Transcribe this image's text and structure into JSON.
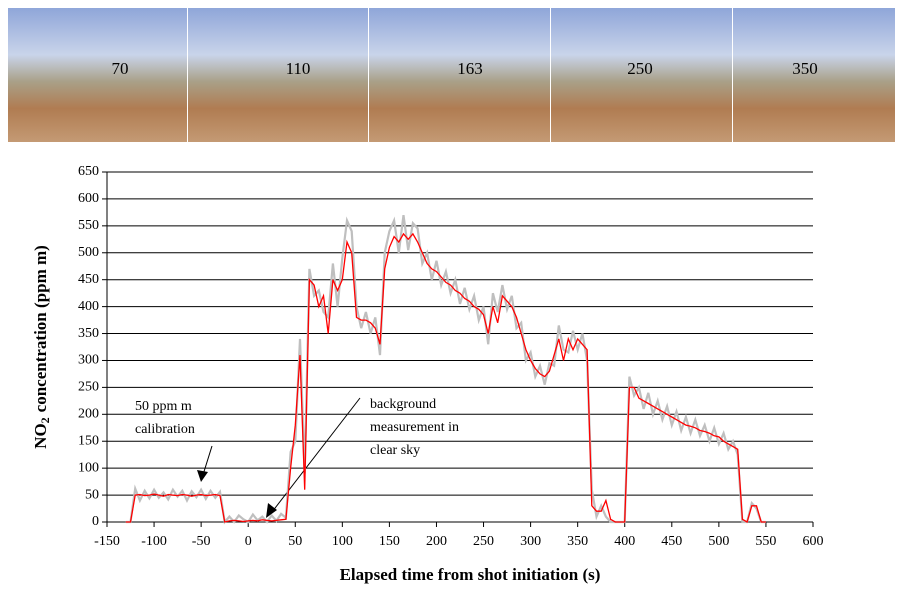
{
  "chart_data": {
    "type": "line",
    "photo_labels": [
      70,
      110,
      163,
      250,
      350
    ],
    "xlabel": "Elapsed time from shot initiation (s)",
    "ylabel": [
      "NO",
      "2",
      "concentration (ppm m)"
    ],
    "annotations": [
      {
        "lines": [
          "50 ppm m",
          "calibration"
        ]
      },
      {
        "lines": [
          "background",
          "measurement in",
          "clear sky"
        ]
      }
    ],
    "xlim": [
      -150,
      600
    ],
    "xticks": [
      -150,
      -100,
      -50,
      0,
      50,
      100,
      150,
      200,
      250,
      300,
      350,
      400,
      450,
      500,
      550,
      600
    ],
    "ylim": [
      0,
      650
    ],
    "yticks": [
      0,
      50,
      100,
      150,
      200,
      250,
      300,
      350,
      400,
      450,
      500,
      550,
      600,
      650
    ],
    "grid": true,
    "x": [
      -130,
      -125,
      -120,
      -115,
      -110,
      -105,
      -100,
      -95,
      -90,
      -85,
      -80,
      -75,
      -70,
      -65,
      -60,
      -55,
      -50,
      -45,
      -40,
      -35,
      -30,
      -25,
      -20,
      -15,
      -10,
      -5,
      0,
      5,
      10,
      15,
      20,
      25,
      30,
      35,
      40,
      45,
      50,
      55,
      60,
      65,
      70,
      75,
      80,
      85,
      90,
      95,
      100,
      105,
      110,
      115,
      120,
      125,
      130,
      135,
      140,
      145,
      150,
      155,
      160,
      165,
      170,
      175,
      180,
      185,
      190,
      195,
      200,
      205,
      210,
      215,
      220,
      225,
      230,
      235,
      240,
      245,
      250,
      255,
      260,
      265,
      270,
      275,
      280,
      285,
      290,
      295,
      300,
      305,
      310,
      315,
      320,
      325,
      330,
      335,
      340,
      345,
      350,
      355,
      360,
      365,
      370,
      375,
      380,
      385,
      390,
      395,
      400,
      405,
      410,
      415,
      420,
      425,
      430,
      435,
      440,
      445,
      450,
      455,
      460,
      465,
      470,
      475,
      480,
      485,
      490,
      495,
      500,
      505,
      510,
      515,
      520,
      525,
      530,
      535,
      540,
      545,
      550
    ],
    "series": [
      {
        "color": "#bfbfbf",
        "values": [
          0,
          0,
          62,
          40,
          58,
          44,
          60,
          45,
          55,
          42,
          60,
          47,
          58,
          40,
          57,
          46,
          60,
          43,
          58,
          45,
          56,
          0,
          10,
          0,
          12,
          5,
          0,
          14,
          3,
          10,
          0,
          12,
          2,
          15,
          8,
          130,
          150,
          340,
          90,
          470,
          420,
          430,
          390,
          380,
          480,
          400,
          490,
          560,
          540,
          400,
          360,
          390,
          350,
          380,
          310,
          500,
          540,
          560,
          500,
          570,
          505,
          555,
          545,
          480,
          500,
          450,
          485,
          440,
          465,
          425,
          450,
          405,
          435,
          395,
          420,
          375,
          400,
          330,
          425,
          390,
          440,
          395,
          420,
          360,
          370,
          300,
          315,
          270,
          290,
          255,
          295,
          290,
          365,
          320,
          315,
          355,
          320,
          350,
          300,
          60,
          10,
          30,
          10,
          0,
          0,
          0,
          0,
          270,
          235,
          250,
          210,
          240,
          200,
          225,
          190,
          215,
          180,
          205,
          170,
          195,
          165,
          190,
          160,
          180,
          150,
          175,
          145,
          165,
          135,
          150,
          125,
          0,
          0,
          35,
          25,
          0,
          0
        ]
      },
      {
        "color": "#ff0000",
        "values": [
          0,
          0,
          50,
          51,
          49,
          50,
          52,
          50,
          48,
          51,
          50,
          49,
          51,
          50,
          48,
          50,
          51,
          49,
          50,
          51,
          49,
          0,
          2,
          3,
          2,
          1,
          2,
          3,
          2,
          4,
          3,
          2,
          3,
          4,
          5,
          100,
          180,
          310,
          60,
          450,
          440,
          400,
          420,
          350,
          450,
          430,
          450,
          520,
          500,
          380,
          375,
          375,
          370,
          360,
          330,
          470,
          510,
          530,
          520,
          535,
          525,
          535,
          520,
          500,
          480,
          470,
          465,
          455,
          445,
          440,
          430,
          425,
          415,
          410,
          400,
          395,
          385,
          350,
          400,
          370,
          420,
          410,
          400,
          380,
          350,
          320,
          300,
          285,
          275,
          270,
          280,
          310,
          340,
          300,
          340,
          320,
          340,
          330,
          320,
          30,
          20,
          20,
          40,
          5,
          0,
          0,
          0,
          250,
          250,
          230,
          225,
          220,
          215,
          210,
          205,
          200,
          195,
          190,
          185,
          180,
          178,
          175,
          170,
          168,
          165,
          160,
          158,
          150,
          145,
          140,
          135,
          5,
          0,
          30,
          30,
          0,
          0
        ]
      }
    ]
  }
}
